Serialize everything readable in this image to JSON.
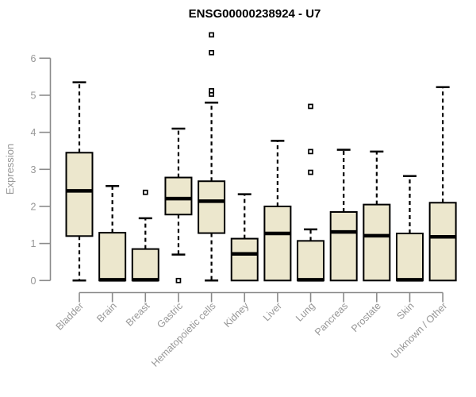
{
  "title": "ENSG00000238924 - U7",
  "chart_data": {
    "type": "boxplot",
    "title": "ENSG00000238924 - U7",
    "xlabel": "",
    "ylabel": "Expression",
    "ylim": [
      0,
      6.8
    ],
    "yticks": [
      0,
      1,
      2,
      3,
      4,
      5,
      6
    ],
    "grid": false,
    "legend": false,
    "colors": {
      "box_fill": "#ece7cd",
      "box_stroke": "#000000",
      "median": "#000000",
      "whisker": "#000000",
      "axis": "#8a8a8a",
      "tick_text": "#979797",
      "title_text": "#000000",
      "outlier_fill": "#ffffff",
      "outlier_stroke": "#000000"
    },
    "categories": [
      "Bladder",
      "Brain",
      "Breast",
      "Gastric",
      "Hematopoietic cells",
      "Kidney",
      "Liver",
      "Lung",
      "Pancreas",
      "Prostate",
      "Skin",
      "Unknown / Other"
    ],
    "series": [
      {
        "category": "Bladder",
        "low": 0,
        "q1": 1.2,
        "median": 2.42,
        "q3": 3.45,
        "high": 5.35,
        "outliers": []
      },
      {
        "category": "Brain",
        "low": 0,
        "q1": 0,
        "median": 0.02,
        "q3": 1.29,
        "high": 2.55,
        "outliers": []
      },
      {
        "category": "Breast",
        "low": 0,
        "q1": 0,
        "median": 0.02,
        "q3": 0.85,
        "high": 1.68,
        "outliers": [
          2.38
        ]
      },
      {
        "category": "Gastric",
        "low": 0.7,
        "q1": 1.78,
        "median": 2.21,
        "q3": 2.78,
        "high": 4.1,
        "outliers": [
          0
        ]
      },
      {
        "category": "Hematopoietic cells",
        "low": 0,
        "q1": 1.28,
        "median": 2.14,
        "q3": 2.68,
        "high": 4.8,
        "outliers": [
          5.03,
          5.12,
          6.15,
          6.63
        ]
      },
      {
        "category": "Kidney",
        "low": 0,
        "q1": 0,
        "median": 0.72,
        "q3": 1.13,
        "high": 2.33,
        "outliers": []
      },
      {
        "category": "Liver",
        "low": 0,
        "q1": 0,
        "median": 1.27,
        "q3": 2.0,
        "high": 3.77,
        "outliers": []
      },
      {
        "category": "Lung",
        "low": 0,
        "q1": 0,
        "median": 0.02,
        "q3": 1.07,
        "high": 1.38,
        "outliers": [
          2.92,
          3.48,
          4.7
        ]
      },
      {
        "category": "Pancreas",
        "low": 0,
        "q1": 0,
        "median": 1.31,
        "q3": 1.85,
        "high": 3.53,
        "outliers": []
      },
      {
        "category": "Prostate",
        "low": 0,
        "q1": 0,
        "median": 1.21,
        "q3": 2.05,
        "high": 3.48,
        "outliers": []
      },
      {
        "category": "Skin",
        "low": 0,
        "q1": 0,
        "median": 0.02,
        "q3": 1.27,
        "high": 2.82,
        "outliers": []
      },
      {
        "category": "Unknown / Other",
        "low": 0,
        "q1": 0,
        "median": 1.18,
        "q3": 2.1,
        "high": 5.22,
        "outliers": []
      }
    ]
  }
}
